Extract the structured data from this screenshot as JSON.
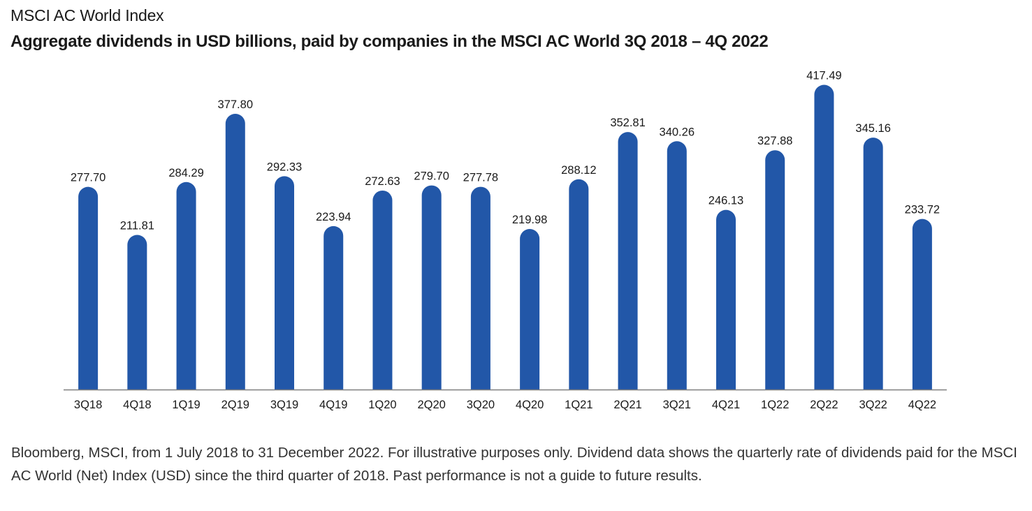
{
  "title": "MSCI AC World Index",
  "subtitle": "Aggregate dividends in USD billions, paid by companies in the MSCI AC World 3Q 2018 – 4Q 2022",
  "footnote": "Bloomberg, MSCI, from 1 July 2018 to 31 December 2022. For illustrative purposes only. Dividend data shows the quarterly rate of dividends paid for the MSCI AC World (Net) Index (USD) since the third quarter of 2018. Past performance is not a guide to future results.",
  "colors": {
    "bar": "#2257a8",
    "axis": "#7f7f7f",
    "label": "#1a1a1a"
  },
  "chart_data": {
    "type": "bar",
    "categories": [
      "3Q18",
      "4Q18",
      "1Q19",
      "2Q19",
      "3Q19",
      "4Q19",
      "1Q20",
      "2Q20",
      "3Q20",
      "4Q20",
      "1Q21",
      "2Q21",
      "3Q21",
      "4Q21",
      "1Q22",
      "2Q22",
      "3Q22",
      "4Q22"
    ],
    "values": [
      277.7,
      211.81,
      284.29,
      377.8,
      292.33,
      223.94,
      272.63,
      279.7,
      277.78,
      219.98,
      288.12,
      352.81,
      340.26,
      246.13,
      327.88,
      417.49,
      345.16,
      233.72
    ],
    "value_labels": [
      "277.70",
      "211.81",
      "284.29",
      "377.80",
      "292.33",
      "223.94",
      "272.63",
      "279.70",
      "277.78",
      "219.98",
      "288.12",
      "352.81",
      "340.26",
      "246.13",
      "327.88",
      "417.49",
      "345.16",
      "233.72"
    ],
    "ylim": [
      0,
      440
    ],
    "grid": false,
    "legend": "none"
  }
}
